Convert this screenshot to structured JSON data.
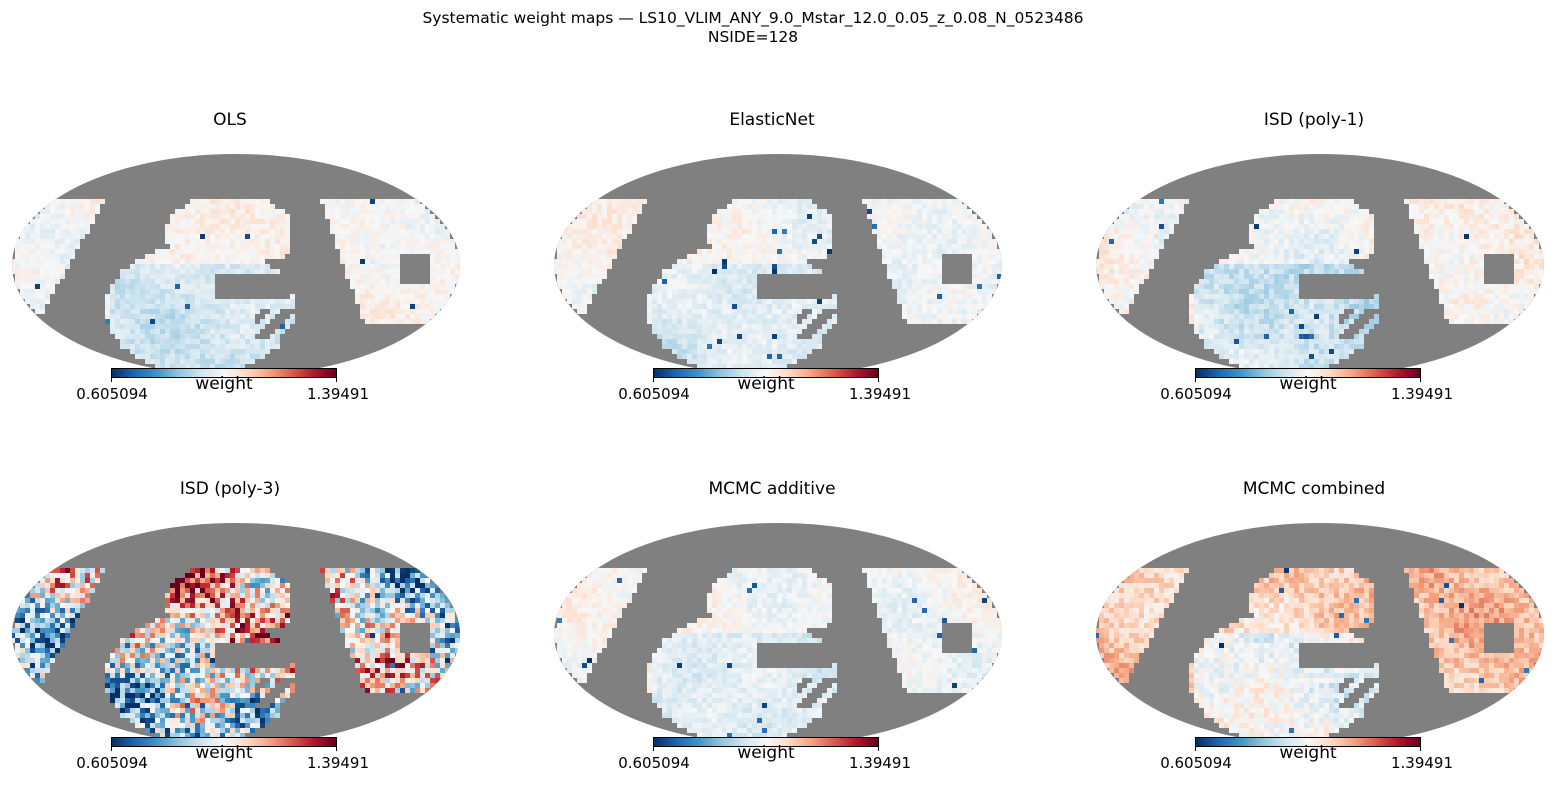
{
  "figure": {
    "suptitle_line1": "Systematic weight maps — LS10_VLIM_ANY_9.0_Mstar_12.0_0.05_z_0.08_N_0523486",
    "suptitle_line2": "NSIDE=128"
  },
  "colors": {
    "masked": "#808080",
    "cmap_stops": [
      "#053061",
      "#2166ac",
      "#4393c3",
      "#92c5de",
      "#d1e5f0",
      "#f7f7f7",
      "#fddbc7",
      "#f4a582",
      "#d6604d",
      "#b2182b",
      "#67001f"
    ]
  },
  "chart_data": [
    {
      "type": "heatmap",
      "projection": "mollweide",
      "title": "OLS",
      "colorbar": {
        "label": "weight",
        "min": 0.605094,
        "max": 1.39491,
        "min_label": "0.605094",
        "max_label": "1.39491",
        "cmap": "RdBu_r"
      },
      "dominant_weight": 1.0,
      "dispersion": 0.05,
      "notes": "weights cluster near 1; faint blue southern cap, a few dark-blue spots"
    },
    {
      "type": "heatmap",
      "projection": "mollweide",
      "title": "ElasticNet",
      "colorbar": {
        "label": "weight",
        "min": 0.605094,
        "max": 1.39491,
        "min_label": "0.605094",
        "max_label": "1.39491",
        "cmap": "RdBu_r"
      },
      "dominant_weight": 1.0,
      "dispersion": 0.05
    },
    {
      "type": "heatmap",
      "projection": "mollweide",
      "title": "ISD (poly-1)",
      "colorbar": {
        "label": "weight",
        "min": 0.605094,
        "max": 1.39491,
        "min_label": "0.605094",
        "max_label": "1.39491",
        "cmap": "RdBu_r"
      },
      "dominant_weight": 1.0,
      "dispersion": 0.06
    },
    {
      "type": "heatmap",
      "projection": "mollweide",
      "title": "ISD (poly-3)",
      "colorbar": {
        "label": "weight",
        "min": 0.605094,
        "max": 1.39491,
        "min_label": "0.605094",
        "max_label": "1.39491",
        "cmap": "RdBu_r"
      },
      "dominant_weight": 1.0,
      "dispersion": 0.35,
      "notes": "highly variable weights saturating both ends of the colour scale"
    },
    {
      "type": "heatmap",
      "projection": "mollweide",
      "title": "MCMC additive",
      "colorbar": {
        "label": "weight",
        "min": 0.605094,
        "max": 1.39491,
        "min_label": "0.605094",
        "max_label": "1.39491",
        "cmap": "RdBu_r"
      },
      "dominant_weight": 1.0,
      "dispersion": 0.05
    },
    {
      "type": "heatmap",
      "projection": "mollweide",
      "title": "MCMC combined",
      "colorbar": {
        "label": "weight",
        "min": 0.605094,
        "max": 1.39491,
        "min_label": "0.605094",
        "max_label": "1.39491",
        "cmap": "RdBu_r"
      },
      "dominant_weight": 1.1,
      "dispersion": 0.08,
      "notes": "mostly light red (weights above 1) with a whitish central region"
    }
  ]
}
